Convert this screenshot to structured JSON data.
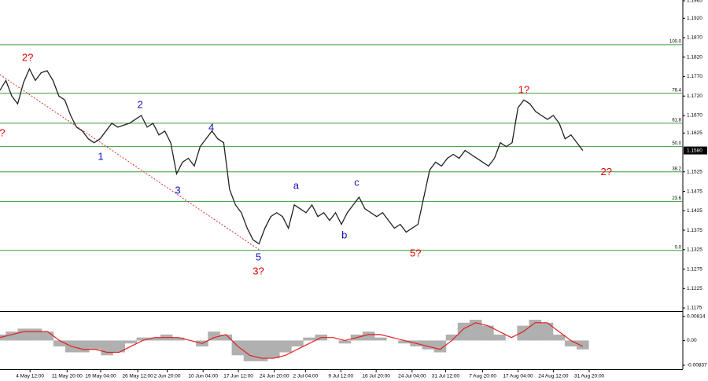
{
  "chart_data": [
    {
      "type": "line",
      "color": "#222222",
      "values": [
        1.1735,
        1.176,
        1.172,
        1.17,
        1.1755,
        1.179,
        1.176,
        1.178,
        1.1785,
        1.176,
        1.172,
        1.171,
        1.167,
        1.164,
        1.163,
        1.161,
        1.16,
        1.161,
        1.163,
        1.165,
        1.164,
        1.1645,
        1.165,
        1.166,
        1.167,
        1.164,
        1.165,
        1.162,
        1.163,
        1.16,
        1.152,
        1.155,
        1.156,
        1.154,
        1.159,
        1.161,
        1.163,
        1.161,
        1.16,
        1.148,
        1.144,
        1.142,
        1.138,
        1.135,
        1.134,
        1.138,
        1.141,
        1.142,
        1.141,
        1.138,
        1.144,
        1.143,
        1.142,
        1.144,
        1.141,
        1.142,
        1.14,
        1.142,
        1.139,
        1.142,
        1.144,
        1.146,
        1.143,
        1.142,
        1.141,
        1.142,
        1.14,
        1.138,
        1.139,
        1.137,
        1.138,
        1.139,
        1.146,
        1.153,
        1.155,
        1.154,
        1.156,
        1.157,
        1.156,
        1.158,
        1.157,
        1.156,
        1.155,
        1.154,
        1.156,
        1.16,
        1.159,
        1.16,
        1.169,
        1.171,
        1.17,
        1.168,
        1.167,
        1.166,
        1.167,
        1.165,
        1.161,
        1.162,
        1.16,
        1.158
      ],
      "xlim": [
        0,
        116
      ],
      "ylim": [
        1.1169,
        1.1967
      ],
      "xticks": [
        {
          "value": 5.1,
          "label": "4 May 12:00"
        },
        {
          "value": 11.4,
          "label": "11 May 20:00"
        },
        {
          "value": 17.1,
          "label": "19 May 04:00"
        },
        {
          "value": 23.4,
          "label": "26 May 12:00"
        },
        {
          "value": 28.4,
          "label": "2 Jun 20:00"
        },
        {
          "value": 34.5,
          "label": "10 Jun 04:00"
        },
        {
          "value": 40.5,
          "label": "17 Jun 12:00"
        },
        {
          "value": 46.6,
          "label": "24 Jun 20:00"
        },
        {
          "value": 51.9,
          "label": "2 Jul 04:00"
        },
        {
          "value": 57.9,
          "label": "9 Jul 12:00"
        },
        {
          "value": 63.9,
          "label": "16 Jul 20:00"
        },
        {
          "value": 70,
          "label": "24 Jul 04:00"
        },
        {
          "value": 75.7,
          "label": "31 Jul 12:00"
        },
        {
          "value": 82,
          "label": "7 Aug 20:00"
        },
        {
          "value": 88,
          "label": "17 Aug 04:00"
        },
        {
          "value": 94,
          "label": "24 Aug 12:00"
        },
        {
          "value": 100.1,
          "label": "31 Aug 20:00"
        }
      ],
      "yticks": [
        {
          "value": 1.1965,
          "label": "1.1965"
        },
        {
          "value": 1.192,
          "label": "1.1920"
        },
        {
          "value": 1.187,
          "label": "1.1870"
        },
        {
          "value": 1.182,
          "label": "1.1820"
        },
        {
          "value": 1.177,
          "label": "1.1770"
        },
        {
          "value": 1.172,
          "label": "1.1720"
        },
        {
          "value": 1.167,
          "label": "1.1670"
        },
        {
          "value": 1.1625,
          "label": "1.1625"
        },
        {
          "value": 1.1525,
          "label": "1.1525"
        },
        {
          "value": 1.1475,
          "label": "1.1475"
        },
        {
          "value": 1.1425,
          "label": "1.1425"
        },
        {
          "value": 1.1375,
          "label": "1.1375"
        },
        {
          "value": 1.1325,
          "label": "1.1325"
        },
        {
          "value": 1.1275,
          "label": "1.1275"
        },
        {
          "value": 1.1225,
          "label": "1.1225"
        },
        {
          "value": 1.1175,
          "label": "1.1175"
        }
      ],
      "current_price": {
        "value": 1.158,
        "label": "1.1580"
      },
      "fib_color": "#3f9a3f",
      "fib_levels": [
        {
          "value": 1.1852,
          "label": "100.0"
        },
        {
          "value": 1.1727,
          "label": "76.4"
        },
        {
          "value": 1.165,
          "label": "61.8"
        },
        {
          "value": 1.159,
          "label": "50.0"
        },
        {
          "value": 1.1525,
          "label": "38.2"
        },
        {
          "value": 1.1449,
          "label": "23.6"
        },
        {
          "value": 1.1323,
          "label": "0.0"
        }
      ],
      "trendline": {
        "color": "#e03030",
        "x": [
          0,
          44
        ],
        "y": [
          1.1775,
          1.1325
        ]
      },
      "annotations": [
        {
          "text": "2?",
          "x": 4.7,
          "y": 1.1817,
          "color": "#e00000"
        },
        {
          "text": "?",
          "x": 0.4,
          "y": 1.1623,
          "color": "#e00000"
        },
        {
          "text": "1",
          "x": 17.1,
          "y": 1.1563,
          "color": "#1010c0"
        },
        {
          "text": "2",
          "x": 23.8,
          "y": 1.1696,
          "color": "#1010c0"
        },
        {
          "text": "3",
          "x": 30.2,
          "y": 1.1476,
          "color": "#1010c0"
        },
        {
          "text": "4",
          "x": 35.9,
          "y": 1.1638,
          "color": "#1010c0"
        },
        {
          "text": "5",
          "x": 43.9,
          "y": 1.1304,
          "color": "#1010c0"
        },
        {
          "text": "3?",
          "x": 43.9,
          "y": 1.1268,
          "color": "#e00000"
        },
        {
          "text": "a",
          "x": 50.3,
          "y": 1.1488,
          "color": "#1010c0"
        },
        {
          "text": "b",
          "x": 58.5,
          "y": 1.1361,
          "color": "#1010c0"
        },
        {
          "text": "c",
          "x": 60.6,
          "y": 1.1496,
          "color": "#1010c0"
        },
        {
          "text": "5?",
          "x": 70.6,
          "y": 1.1314,
          "color": "#e00000"
        },
        {
          "text": "1?",
          "x": 89,
          "y": 1.1735,
          "color": "#e00000"
        },
        {
          "text": "2?",
          "x": 103,
          "y": 1.1523,
          "color": "#e00000"
        }
      ]
    },
    {
      "type": "bar",
      "color": "#b0b0b0",
      "values": [
        0.002,
        0.003,
        0.004,
        0.004,
        0.003,
        -0.002,
        -0.004,
        -0.004,
        -0.003,
        -0.005,
        -0.004,
        -0.001,
        0.001,
        0.001,
        0.002,
        0.001,
        0,
        -0.002,
        0.003,
        0.002,
        -0.005,
        -0.007,
        -0.007,
        -0.006,
        -0.004,
        -0.002,
        0.001,
        0.002,
        0,
        -0.001,
        0.002,
        0.003,
        0.001,
        0,
        -0.001,
        -0.002,
        -0.003,
        -0.004,
        0.002,
        0.006,
        0.007,
        0.005,
        0.002,
        0,
        0.005,
        0.007,
        0.006,
        0.002,
        -0.002,
        -0.003
      ],
      "signal": {
        "color": "#e02020",
        "values": [
          0.001,
          0.002,
          0.003,
          0.003,
          0.003,
          0,
          -0.002,
          -0.003,
          -0.003,
          -0.004,
          -0.004,
          -0.002,
          0,
          0.001,
          0.001,
          0.001,
          0,
          -0.001,
          0.001,
          0.002,
          -0.002,
          -0.005,
          -0.006,
          -0.006,
          -0.005,
          -0.003,
          -0.001,
          0.001,
          0.001,
          0,
          0.001,
          0.002,
          0.002,
          0.001,
          0,
          -0.001,
          -0.002,
          -0.003,
          0,
          0.004,
          0.006,
          0.005,
          0.003,
          0.001,
          0.003,
          0.006,
          0.006,
          0.003,
          0,
          -0.002
        ]
      },
      "xlim": [
        0,
        116
      ],
      "ylim": [
        -0.0097,
        0.0094
      ],
      "yticks": [
        0.00814,
        {
          "value": 0,
          "label": "0.00"
        },
        -0.00837
      ]
    }
  ]
}
